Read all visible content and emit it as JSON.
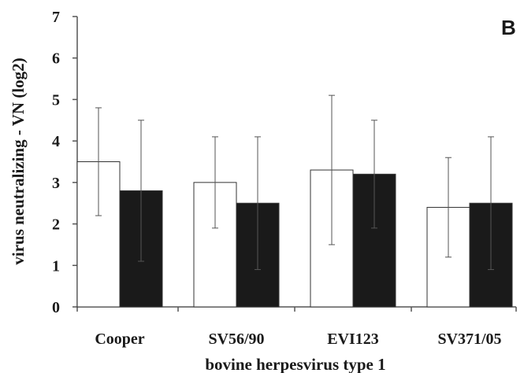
{
  "chart_data": {
    "type": "bar",
    "panel_label": "B",
    "xlabel": "bovine herpesvirus type 1",
    "ylabel": "virus neutralizing - VN (log2)",
    "ylim": [
      0,
      7
    ],
    "yticks": [
      "0",
      "1",
      "2",
      "3",
      "4",
      "5",
      "6",
      "7"
    ],
    "grid": false,
    "categories": [
      "Cooper",
      "SV56/90",
      "EVI123",
      "SV371/05"
    ],
    "series": [
      {
        "fill": "#ffffff",
        "values": [
          3.5,
          3.0,
          3.3,
          2.4
        ],
        "error": [
          1.3,
          1.1,
          1.8,
          1.2
        ]
      },
      {
        "fill": "#1a1a1a",
        "values": [
          2.8,
          2.5,
          3.2,
          2.5
        ],
        "error": [
          1.7,
          1.6,
          1.3,
          1.6
        ]
      }
    ]
  }
}
